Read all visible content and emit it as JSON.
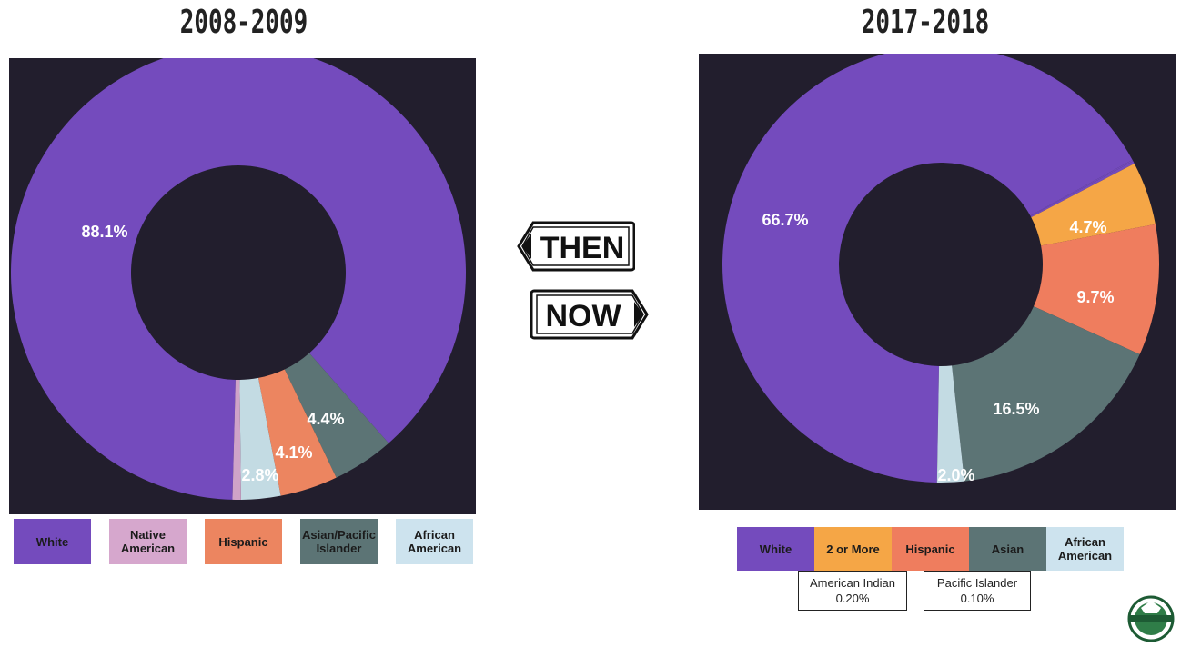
{
  "left_title": "2008-2009",
  "right_title": "2017-2018",
  "signs": {
    "then": "THEN",
    "now": "NOW"
  },
  "chart_data": [
    {
      "type": "pie",
      "donut": true,
      "title": "2008-2009",
      "slices": [
        {
          "name": "White",
          "value": 88.1,
          "label": "88.1%",
          "color": "#744bbd"
        },
        {
          "name": "Native American",
          "value": 0.6,
          "label": "",
          "color": "#cfa3c8"
        },
        {
          "name": "African American",
          "value": 2.8,
          "label": "2.8%",
          "color": "#c3dbe3"
        },
        {
          "name": "Hispanic",
          "value": 4.1,
          "label": "4.1%",
          "color": "#ec8560"
        },
        {
          "name": "Asian/Pacific Islander",
          "value": 4.4,
          "label": "4.4%",
          "color": "#5c7475"
        }
      ],
      "legend": [
        {
          "label": "White",
          "color": "#744bbd"
        },
        {
          "label": "Native American",
          "color": "#d6a7cd"
        },
        {
          "label": "Hispanic",
          "color": "#ec8560"
        },
        {
          "label": "Asian/Pacific Islander",
          "color": "#5c7475"
        },
        {
          "label": "African American",
          "color": "#cde3ee"
        }
      ]
    },
    {
      "type": "pie",
      "donut": true,
      "title": "2017-2018",
      "slices": [
        {
          "name": "White",
          "value": 66.7,
          "label": "66.7%",
          "color": "#744bbd"
        },
        {
          "name": "African American",
          "value": 2.0,
          "label": "2.0%",
          "color": "#c3dbe3"
        },
        {
          "name": "Asian",
          "value": 16.5,
          "label": "16.5%",
          "color": "#5c7475"
        },
        {
          "name": "Hispanic",
          "value": 9.7,
          "label": "9.7%",
          "color": "#ef7d5e"
        },
        {
          "name": "2 or More",
          "value": 4.7,
          "label": "4.7%",
          "color": "#f5a646"
        },
        {
          "name": "American Indian",
          "value": 0.2,
          "label": "",
          "color": "#744bbd"
        },
        {
          "name": "Pacific Islander",
          "value": 0.1,
          "label": "",
          "color": "#744bbd"
        }
      ],
      "legend": [
        {
          "label": "White",
          "color": "#744bbd"
        },
        {
          "label": "2 or More",
          "color": "#f5a646"
        },
        {
          "label": "Hispanic",
          "color": "#ef7d5e"
        },
        {
          "label": "Asian",
          "color": "#5c7475"
        },
        {
          "label": "African American",
          "color": "#cde3ee"
        }
      ],
      "notes": [
        {
          "label": "American Indian",
          "value": "0.20%"
        },
        {
          "label": "Pacific Islander",
          "value": "0.10%"
        }
      ]
    }
  ]
}
